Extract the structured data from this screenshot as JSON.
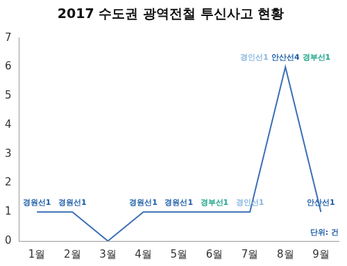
{
  "chart_data": {
    "type": "line",
    "title": "2017 수도권 광역전철 투신사고 현황",
    "categories": [
      "1월",
      "2월",
      "3월",
      "4월",
      "5월",
      "6월",
      "7월",
      "8월",
      "9월"
    ],
    "values": [
      1,
      1,
      0,
      1,
      1,
      1,
      1,
      6,
      1
    ],
    "color": "#3b6fb6",
    "ylim": [
      0,
      7
    ],
    "yticks": [
      0,
      1,
      2,
      3,
      4,
      5,
      6,
      7
    ],
    "grid": false,
    "unit_label": "단위: 건",
    "annotations": [
      {
        "category": "1월",
        "parts": [
          {
            "text": "경원선1",
            "color": "#1f5fa8"
          }
        ]
      },
      {
        "category": "2월",
        "parts": [
          {
            "text": "경원선1",
            "color": "#1f5fa8"
          }
        ]
      },
      {
        "category": "4월",
        "parts": [
          {
            "text": "경원선1",
            "color": "#1f5fa8"
          }
        ]
      },
      {
        "category": "5월",
        "parts": [
          {
            "text": "경원선1",
            "color": "#1f5fa8"
          }
        ]
      },
      {
        "category": "6월",
        "parts": [
          {
            "text": "경부선1",
            "color": "#21a58b"
          }
        ]
      },
      {
        "category": "7월",
        "parts": [
          {
            "text": "경인선1",
            "color": "#8ab8e0"
          }
        ]
      },
      {
        "category": "8월",
        "parts": [
          {
            "text": "경인선1",
            "color": "#8ab8e0"
          },
          {
            "text": "안산선4",
            "color": "#1f5fa8"
          },
          {
            "text": "경부선1",
            "color": "#21a58b"
          }
        ]
      },
      {
        "category": "9월",
        "parts": [
          {
            "text": "안산선1",
            "color": "#1f5fa8"
          }
        ]
      }
    ]
  }
}
